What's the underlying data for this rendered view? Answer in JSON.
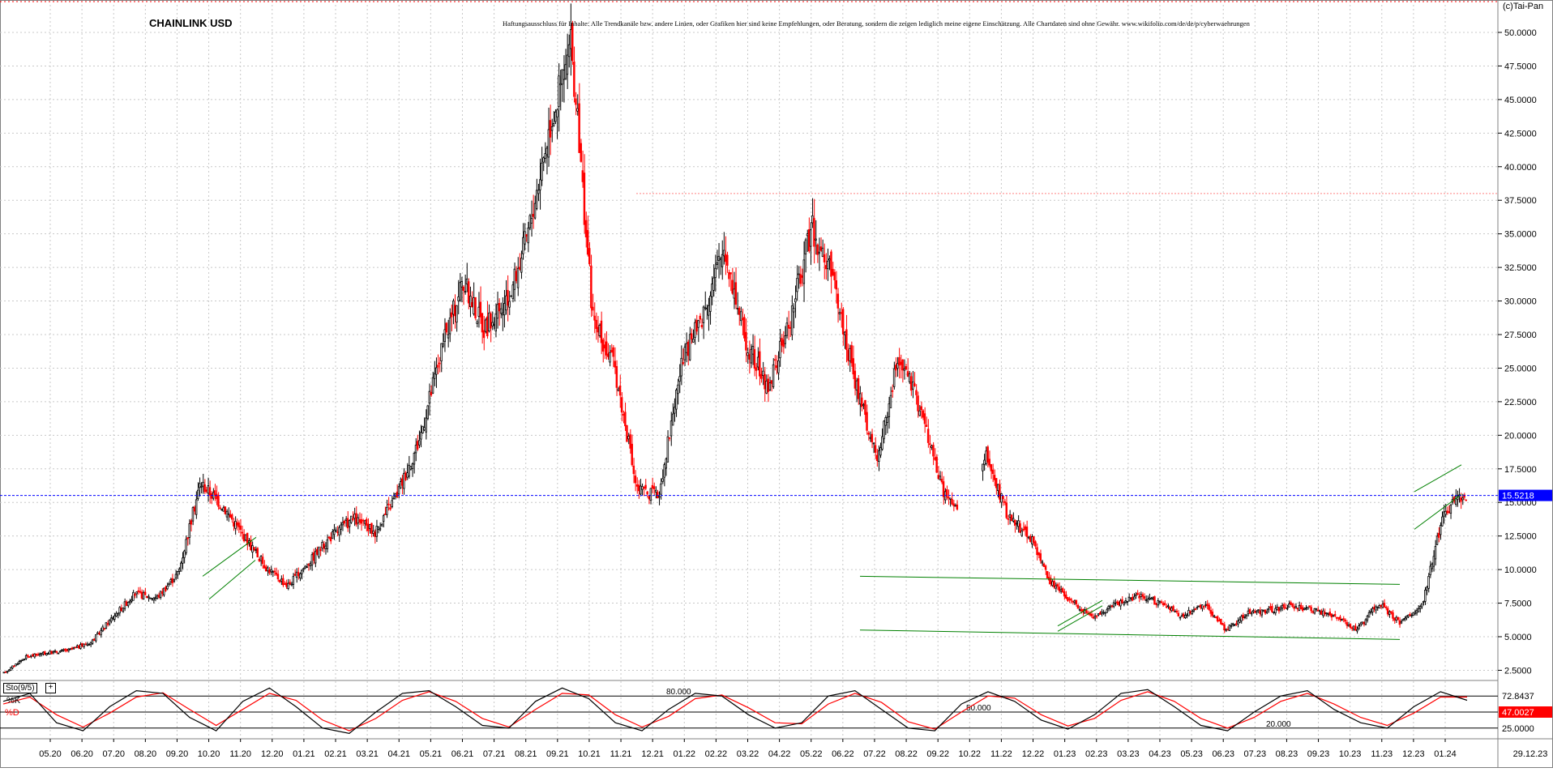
{
  "title": "CHAINLINK USD",
  "disclaimer": "Haftungsausschluss für Inhalte: Alle Trendkanäle bzw. andere Linien, oder Grafiken hier sind keine Empfehlungen, oder Beratung, sondern die zeigen lediglich meine eigene Einschätzung. Alle Chartdaten sind ohne Gewähr.  www.wikifolio.com/de/de/p/cyberwaehrungen",
  "copyright": "(c)Tai-Pan",
  "colors": {
    "up": "#000000",
    "down": "#ff0000",
    "channel": "#008000",
    "current_line": "#0000ff",
    "resistance": "#ff8080",
    "grid": "#c8c8c8",
    "k_line": "#000000",
    "d_line": "#ff0000"
  },
  "chart_data": [
    {
      "type": "candlestick",
      "title": "CHAINLINK USD",
      "ylim": [
        1.5,
        52.5
      ],
      "y_ticks": [
        "2.5000",
        "5.0000",
        "7.5000",
        "10.0000",
        "12.5000",
        "15.0000",
        "17.5000",
        "20.0000",
        "22.5000",
        "25.0000",
        "27.5000",
        "30.0000",
        "32.5000",
        "35.0000",
        "37.5000",
        "40.0000",
        "42.5000",
        "45.0000",
        "47.5000",
        "50.0000"
      ],
      "x_labels": [
        "05.20",
        "06.20",
        "07.20",
        "08.20",
        "09.20",
        "10.20",
        "11.20",
        "12.20",
        "01.21",
        "02.21",
        "03.21",
        "04.21",
        "05.21",
        "06.21",
        "07.21",
        "08.21",
        "09.21",
        "10.21",
        "11.21",
        "12.21",
        "01.22",
        "02.22",
        "03.22",
        "04.22",
        "05.22",
        "06.22",
        "07.22",
        "08.22",
        "09.22",
        "10.22",
        "11.22",
        "12.22",
        "01.23",
        "02.23",
        "03.23",
        "04.23",
        "05.23",
        "06.23",
        "07.23",
        "08.23",
        "09.23",
        "10.23",
        "11.23",
        "12.23",
        "01.24"
      ],
      "x_axis_end_label": "29.12.23",
      "series": [
        {
          "name": "",
          "values": [
            2.3,
            3.5,
            3.8,
            4.0,
            4.6,
            6.5,
            8.2,
            7.9,
            9.8,
            16.5,
            14.8,
            12.5,
            10.2,
            8.8,
            10.6,
            12.5,
            13.8,
            12.8,
            15.6,
            19.5,
            26.0,
            31.5,
            28.0,
            29.5,
            35.0,
            43.0,
            49.0,
            28.5,
            25.0,
            16.0,
            15.5,
            25.0,
            29.0,
            34.0,
            27.0,
            23.5,
            28.5,
            35.5,
            31.5,
            24.0,
            18.0,
            26.0,
            22.0,
            16.0,
            13.5,
            18.5,
            14.0,
            12.5,
            9.0,
            7.5,
            6.5,
            7.5,
            8.0,
            7.5,
            6.5,
            7.5,
            5.5,
            6.8,
            7.0,
            7.3,
            7.0,
            6.5,
            5.5,
            7.5,
            6.0,
            7.5,
            14.5,
            15.5
          ]
        }
      ],
      "current_price": 15.5218,
      "current_price_label": "15.5218",
      "resistance_level": 38.0
    },
    {
      "type": "line",
      "title": "Sto(9/5)",
      "ylim": [
        0,
        100
      ],
      "levels": [
        80,
        50,
        20
      ],
      "level_labels": [
        "80.000",
        "50.000",
        "20.000"
      ],
      "right_labels": {
        "upper": "72.8437",
        "middle": "47.0027",
        "lower": "25.0000"
      },
      "series": [
        {
          "name": "%K",
          "values": [
            70,
            85,
            30,
            15,
            60,
            90,
            85,
            40,
            15,
            70,
            95,
            60,
            20,
            10,
            50,
            85,
            90,
            60,
            25,
            20,
            70,
            95,
            75,
            30,
            15,
            55,
            85,
            80,
            45,
            20,
            30,
            80,
            90,
            55,
            20,
            15,
            65,
            88,
            70,
            35,
            18,
            45,
            85,
            92,
            60,
            25,
            15,
            50,
            80,
            90,
            55,
            30,
            20,
            60,
            88,
            72
          ]
        },
        {
          "name": "%D",
          "values": [
            65,
            78,
            45,
            22,
            48,
            78,
            86,
            55,
            25,
            55,
            85,
            72,
            35,
            15,
            38,
            72,
            88,
            70,
            38,
            22,
            55,
            85,
            82,
            45,
            22,
            42,
            75,
            82,
            58,
            30,
            28,
            65,
            85,
            68,
            32,
            18,
            50,
            80,
            76,
            45,
            24,
            38,
            72,
            88,
            70,
            38,
            20,
            40,
            70,
            85,
            65,
            40,
            25,
            48,
            78,
            78
          ]
        }
      ]
    }
  ]
}
